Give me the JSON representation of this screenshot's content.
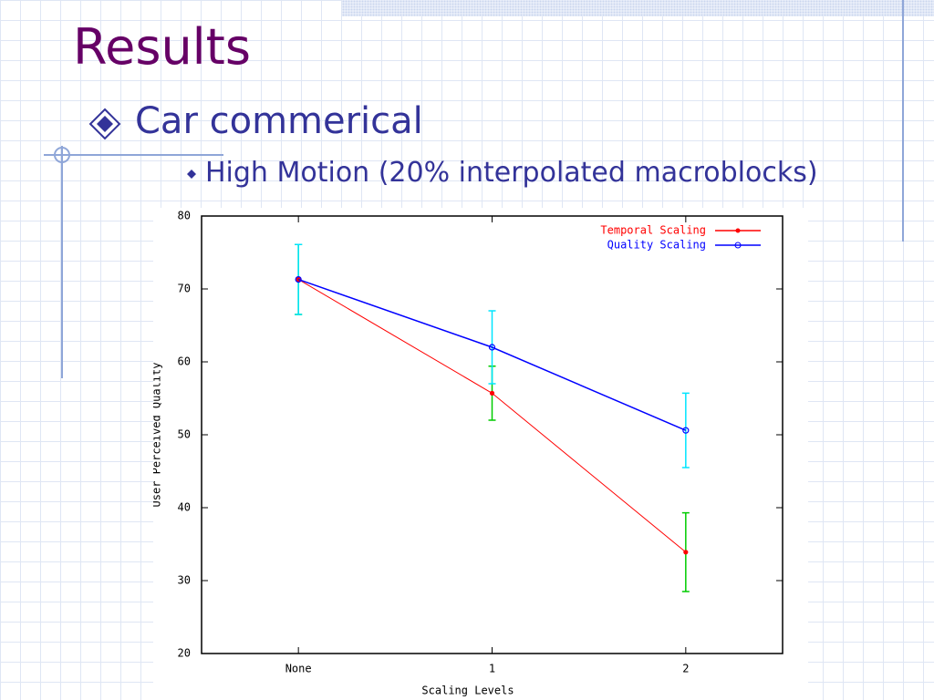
{
  "title": "Results",
  "bullets": [
    "Car commerical",
    "High Motion (20% interpolated macroblocks)"
  ],
  "chart_data": {
    "type": "line",
    "xlabel": "Scaling Levels",
    "ylabel": "User Perceived Quality",
    "categories": [
      "None",
      "1",
      "2"
    ],
    "series": [
      {
        "name": "Temporal Scaling",
        "color": "#ff0000",
        "error_color": "#00cc00",
        "values": [
          71.3,
          55.7,
          33.9
        ],
        "errors": [
          4.8,
          3.7,
          5.4
        ]
      },
      {
        "name": "Quality Scaling",
        "color": "#0000ff",
        "error_color": "#00e5ff",
        "values": [
          71.3,
          62,
          50.6
        ],
        "errors": [
          4.8,
          5,
          5.1
        ]
      }
    ],
    "ylim": [
      20,
      80
    ],
    "yticks": [
      20,
      30,
      40,
      50,
      60,
      70,
      80
    ],
    "grid": false,
    "legend": "top-right"
  }
}
